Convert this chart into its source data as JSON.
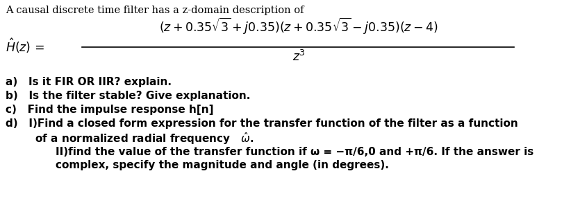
{
  "background_color": "#ffffff",
  "intro_text": "A causal discrete time filter has a z-domain description of",
  "questions": [
    "a)   Is it FIR OR IIR? explain.",
    "b)   Is the filter stable? Give explanation.",
    "c)   Find the impulse response h[n]",
    "d)   I)Find a closed form expression for the transfer function of the filter as a function"
  ],
  "q_d_line2": "        of a normalized radial frequency   $\\hat{\\omega}$.",
  "q_d_part2_line1": "        II)find the value of the transfer function if ω = −π/6,0 and +π/6. If the answer is",
  "q_d_part2_line2": "        complex, specify the magnitude and angle (in degrees).",
  "fs_intro": 10.5,
  "fs_eq": 12.5,
  "fs_q": 11
}
